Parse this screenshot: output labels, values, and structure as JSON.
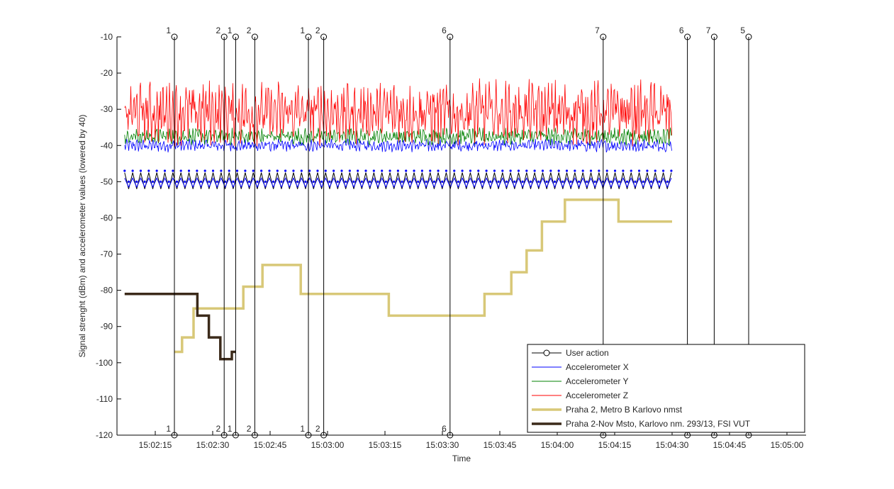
{
  "chart_data": {
    "type": "line",
    "title": "",
    "xlabel": "Time",
    "ylabel": "Signal strenght (dBm) and accelerometer values (lowered by 40)",
    "xlim_seconds": [
      125,
      305
    ],
    "ylim": [
      -120,
      -10
    ],
    "x_ticks": [
      "15:02:15",
      "15:02:30",
      "15:02:45",
      "15:03:00",
      "15:03:15",
      "15:03:30",
      "15:03:45",
      "15:04:00",
      "15:04:15",
      "15:04:30",
      "15:04:45",
      "15:05:00"
    ],
    "y_ticks": [
      -10,
      -20,
      -30,
      -40,
      -50,
      -60,
      -70,
      -80,
      -90,
      -100,
      -110,
      -120
    ],
    "grid": false,
    "legend_position": "bottom-right",
    "user_actions": [
      {
        "time": "15:02:20",
        "label": "1"
      },
      {
        "time": "15:02:33",
        "label": "2"
      },
      {
        "time": "15:02:36",
        "label": "1"
      },
      {
        "time": "15:02:41",
        "label": "2"
      },
      {
        "time": "15:02:55",
        "label": "1"
      },
      {
        "time": "15:02:59",
        "label": "2"
      },
      {
        "time": "15:03:32",
        "label": "6"
      },
      {
        "time": "15:04:12",
        "label": "7"
      },
      {
        "time": "15:04:34",
        "label": "6"
      },
      {
        "time": "15:04:41",
        "label": "7"
      },
      {
        "time": "15:04:50",
        "label": "5"
      }
    ],
    "series": [
      {
        "name": "User action",
        "color": "#000000",
        "style": "line-with-circle-markers"
      },
      {
        "name": "Accelerometer X",
        "color": "#0000ff",
        "style": "noisy-line",
        "mean": -40,
        "noise": 1.2
      },
      {
        "name": "Accelerometer Y",
        "color": "#008000",
        "style": "noisy-line",
        "mean": -37.5,
        "noise": 1.6
      },
      {
        "name": "Accelerometer Z",
        "color": "#ff0000",
        "style": "noisy-line",
        "mean": -31,
        "noise": 6
      },
      {
        "name": "Praha 2, Metro B Karlovo nmst",
        "color": "#d8c878",
        "style": "step",
        "points": [
          [
            140,
            -97
          ],
          [
            142,
            -93
          ],
          [
            145,
            -85
          ],
          [
            156,
            -85
          ],
          [
            158,
            -79
          ],
          [
            162,
            -79
          ],
          [
            163,
            -73
          ],
          [
            172,
            -73
          ],
          [
            173,
            -81
          ],
          [
            195,
            -81
          ],
          [
            196,
            -87
          ],
          [
            220,
            -87
          ],
          [
            221,
            -81
          ],
          [
            227,
            -81
          ],
          [
            228,
            -75
          ],
          [
            231,
            -75
          ],
          [
            232,
            -69
          ],
          [
            235,
            -69
          ],
          [
            236,
            -61
          ],
          [
            241,
            -61
          ],
          [
            242,
            -55
          ],
          [
            255,
            -55
          ],
          [
            256,
            -61
          ],
          [
            270,
            -61
          ]
        ]
      },
      {
        "name": "Praha 2-Nov Msto, Karlovo nm. 293/13, FSI VUT",
        "color": "#3b2a1a",
        "style": "step",
        "points": [
          [
            127,
            -81
          ],
          [
            145,
            -81
          ],
          [
            146,
            -87
          ],
          [
            148,
            -87
          ],
          [
            149,
            -93
          ],
          [
            151,
            -93
          ],
          [
            152,
            -99
          ],
          [
            154,
            -99
          ],
          [
            155,
            -97
          ],
          [
            156,
            -97
          ]
        ]
      }
    ],
    "pattern_rows": [
      {
        "color": "#0000ff",
        "style": "dots",
        "values": [
          -47,
          -50
        ]
      },
      {
        "color": "#000000",
        "style": "zigzag",
        "values": [
          -47.5,
          -52
        ]
      },
      {
        "color": "#0000ff",
        "style": "zigzag",
        "values": [
          -49,
          -51.5
        ]
      }
    ]
  }
}
